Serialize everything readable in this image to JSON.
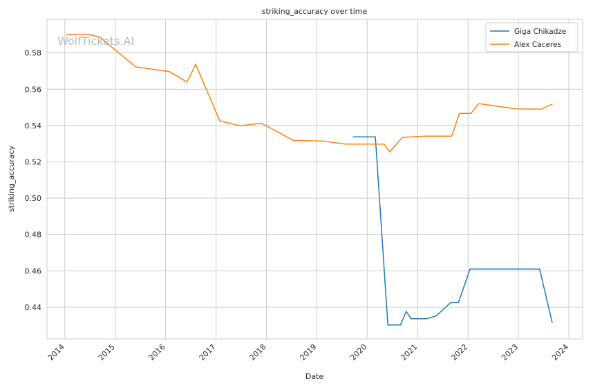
{
  "chart_data": {
    "type": "line",
    "title": "striking_accuracy over time",
    "xlabel": "Date",
    "ylabel": "striking_accuracy",
    "watermark": "WolfTickets.AI",
    "xlim": [
      "2013-08-25",
      "2024-04-10"
    ],
    "ylim": [
      0.4225,
      0.5985
    ],
    "x_ticks": [
      {
        "date": "2014-01-01",
        "label": "2014"
      },
      {
        "date": "2015-01-01",
        "label": "2015"
      },
      {
        "date": "2016-01-01",
        "label": "2016"
      },
      {
        "date": "2017-01-01",
        "label": "2017"
      },
      {
        "date": "2018-01-01",
        "label": "2018"
      },
      {
        "date": "2019-01-01",
        "label": "2019"
      },
      {
        "date": "2020-01-01",
        "label": "2020"
      },
      {
        "date": "2021-01-01",
        "label": "2021"
      },
      {
        "date": "2022-01-01",
        "label": "2022"
      },
      {
        "date": "2023-01-01",
        "label": "2023"
      },
      {
        "date": "2024-01-01",
        "label": "2024"
      }
    ],
    "y_ticks": [
      {
        "value": 0.44,
        "label": "0.44"
      },
      {
        "value": 0.46,
        "label": "0.46"
      },
      {
        "value": 0.48,
        "label": "0.48"
      },
      {
        "value": 0.5,
        "label": "0.50"
      },
      {
        "value": 0.52,
        "label": "0.52"
      },
      {
        "value": 0.54,
        "label": "0.54"
      },
      {
        "value": 0.56,
        "label": "0.56"
      },
      {
        "value": 0.58,
        "label": "0.58"
      }
    ],
    "grid": true,
    "legend": "top-right",
    "series": [
      {
        "name": "Giga Chikadze",
        "color": "#1f77b4",
        "points": [
          {
            "x": "2019-09-21",
            "y": 0.5338
          },
          {
            "x": "2020-02-29",
            "y": 0.5338
          },
          {
            "x": "2020-05-30",
            "y": 0.4302
          },
          {
            "x": "2020-08-29",
            "y": 0.4302
          },
          {
            "x": "2020-10-10",
            "y": 0.4377
          },
          {
            "x": "2020-11-14",
            "y": 0.4336
          },
          {
            "x": "2021-03-06",
            "y": 0.4336
          },
          {
            "x": "2021-05-15",
            "y": 0.4352
          },
          {
            "x": "2021-08-28",
            "y": 0.4425
          },
          {
            "x": "2021-10-23",
            "y": 0.4425
          },
          {
            "x": "2022-01-15",
            "y": 0.461
          },
          {
            "x": "2023-06-03",
            "y": 0.461
          },
          {
            "x": "2023-09-02",
            "y": 0.4316
          }
        ]
      },
      {
        "name": "Alex Caceres",
        "color": "#ff7f0e",
        "points": [
          {
            "x": "2014-01-15",
            "y": 0.5901
          },
          {
            "x": "2014-06-28",
            "y": 0.5901
          },
          {
            "x": "2014-09-13",
            "y": 0.5886
          },
          {
            "x": "2015-05-30",
            "y": 0.5723
          },
          {
            "x": "2016-01-30",
            "y": 0.5697
          },
          {
            "x": "2016-06-04",
            "y": 0.564
          },
          {
            "x": "2016-08-06",
            "y": 0.5737
          },
          {
            "x": "2017-01-28",
            "y": 0.5426
          },
          {
            "x": "2017-06-25",
            "y": 0.5399
          },
          {
            "x": "2017-11-25",
            "y": 0.5413
          },
          {
            "x": "2018-07-14",
            "y": 0.5319
          },
          {
            "x": "2019-02-17",
            "y": 0.5314
          },
          {
            "x": "2019-07-27",
            "y": 0.5298
          },
          {
            "x": "2020-05-02",
            "y": 0.5298
          },
          {
            "x": "2020-06-13",
            "y": 0.5255
          },
          {
            "x": "2020-09-12",
            "y": 0.5335
          },
          {
            "x": "2021-02-20",
            "y": 0.5342
          },
          {
            "x": "2021-09-04",
            "y": 0.5342
          },
          {
            "x": "2021-10-30",
            "y": 0.5467
          },
          {
            "x": "2022-01-22",
            "y": 0.5467
          },
          {
            "x": "2022-03-19",
            "y": 0.5521
          },
          {
            "x": "2022-12-17",
            "y": 0.5492
          },
          {
            "x": "2023-06-17",
            "y": 0.5491
          },
          {
            "x": "2023-09-02",
            "y": 0.5517
          }
        ]
      }
    ]
  }
}
